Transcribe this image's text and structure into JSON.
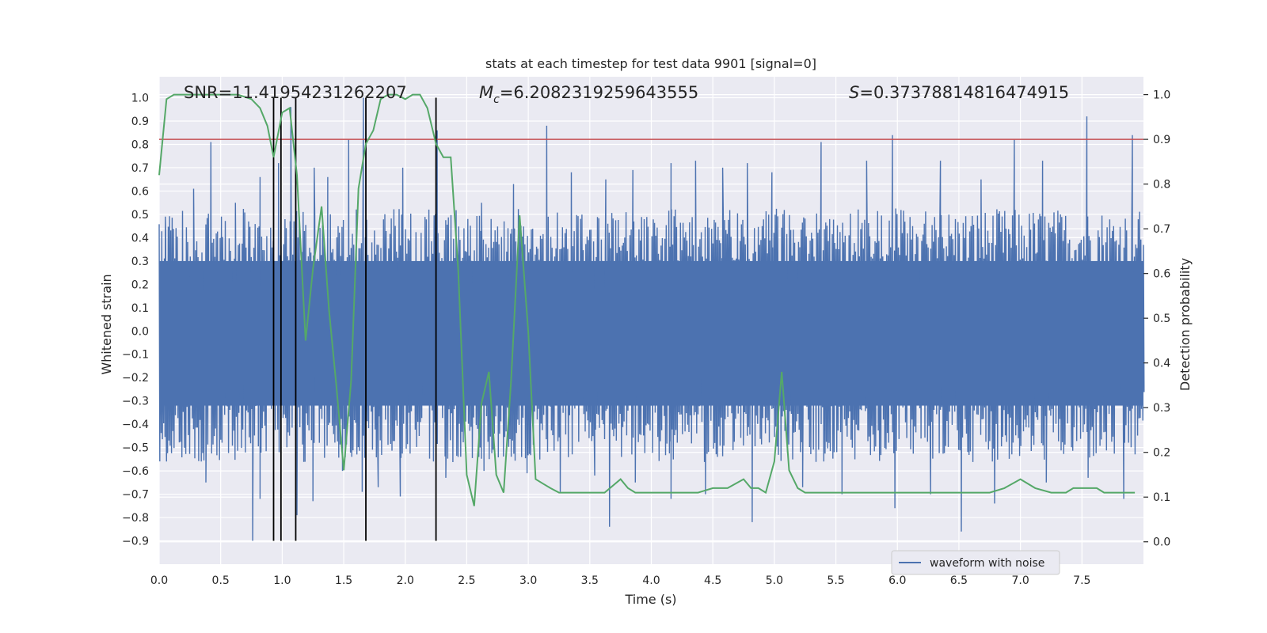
{
  "chart_data": {
    "type": "line",
    "title": "stats at each timestep for test data 9901 [signal=0]",
    "xlabel": "Time (s)",
    "ylabel_left": "Whitened strain",
    "ylabel_right": "Detection probability",
    "xlim": [
      0.0,
      8.0
    ],
    "ylim_left": [
      -1.0,
      1.09
    ],
    "ylim_right": [
      -0.05,
      1.04
    ],
    "xticks": [
      "0.0",
      "0.5",
      "1.0",
      "1.5",
      "2.0",
      "2.5",
      "3.0",
      "3.5",
      "4.0",
      "4.5",
      "5.0",
      "5.5",
      "6.0",
      "6.5",
      "7.0",
      "7.5"
    ],
    "yticks_left": [
      "-0.9",
      "-0.8",
      "-0.7",
      "-0.6",
      "-0.5",
      "-0.4",
      "-0.3",
      "-0.2",
      "-0.1",
      "0.0",
      "0.1",
      "0.2",
      "0.3",
      "0.4",
      "0.5",
      "0.6",
      "0.7",
      "0.8",
      "0.9",
      "1.0"
    ],
    "yticks_right": [
      "0.0",
      "0.1",
      "0.2",
      "0.3",
      "0.4",
      "0.5",
      "0.6",
      "0.7",
      "0.8",
      "0.9",
      "1.0"
    ],
    "annotations": {
      "snr": "SNR=11.41954231262207",
      "mc_symbol": "M",
      "mc_sub": "c",
      "mc_value": "=6.2082319259643555",
      "s_symbol": "S",
      "s_value": "=0.37378814816474915"
    },
    "legend": {
      "label": "waveform with noise",
      "position": "lower right"
    },
    "threshold_right": 0.9,
    "vertical_lines_x": [
      0.93,
      0.99,
      1.11,
      1.68,
      2.25
    ],
    "waveform": {
      "name": "waveform with noise",
      "color": "#4c72b0",
      "envelope": {
        "x_start": 0.0,
        "x_end": 8.0,
        "num_spikes": 760,
        "typical_high": 0.42,
        "typical_low": -0.45
      },
      "spikes_high": [
        [
          0.05,
          0.49
        ],
        [
          0.28,
          0.61
        ],
        [
          0.42,
          0.81
        ],
        [
          0.62,
          0.55
        ],
        [
          0.82,
          0.66
        ],
        [
          0.97,
          0.72
        ],
        [
          1.07,
          0.96
        ],
        [
          1.26,
          0.7
        ],
        [
          1.37,
          0.66
        ],
        [
          1.54,
          0.82
        ],
        [
          1.66,
          1.0
        ],
        [
          1.98,
          0.7
        ],
        [
          2.26,
          0.86
        ],
        [
          2.62,
          0.55
        ],
        [
          2.88,
          0.63
        ],
        [
          3.15,
          0.88
        ],
        [
          3.35,
          0.68
        ],
        [
          3.63,
          0.65
        ],
        [
          3.85,
          0.69
        ],
        [
          4.16,
          0.72
        ],
        [
          4.36,
          0.73
        ],
        [
          4.58,
          0.7
        ],
        [
          4.78,
          0.72
        ],
        [
          4.98,
          0.68
        ],
        [
          5.38,
          0.81
        ],
        [
          5.75,
          0.73
        ],
        [
          5.96,
          0.84
        ],
        [
          6.35,
          0.73
        ],
        [
          6.68,
          0.65
        ],
        [
          6.95,
          0.82
        ],
        [
          7.18,
          0.73
        ],
        [
          7.54,
          0.92
        ],
        [
          7.91,
          0.84
        ]
      ],
      "spikes_low": [
        [
          0.06,
          -0.56
        ],
        [
          0.38,
          -0.65
        ],
        [
          0.76,
          -0.9
        ],
        [
          0.82,
          -0.72
        ],
        [
          1.12,
          -0.79
        ],
        [
          1.25,
          -0.73
        ],
        [
          1.49,
          -0.6
        ],
        [
          1.65,
          -0.69
        ],
        [
          1.78,
          -0.67
        ],
        [
          1.96,
          -0.71
        ],
        [
          2.33,
          -0.63
        ],
        [
          2.64,
          -0.6
        ],
        [
          2.99,
          -0.61
        ],
        [
          3.26,
          -0.69
        ],
        [
          3.54,
          -0.62
        ],
        [
          3.66,
          -0.84
        ],
        [
          3.87,
          -0.65
        ],
        [
          4.16,
          -0.72
        ],
        [
          4.44,
          -0.7
        ],
        [
          4.82,
          -0.82
        ],
        [
          5.23,
          -0.67
        ],
        [
          5.55,
          -0.7
        ],
        [
          5.98,
          -0.76
        ],
        [
          6.27,
          -0.7
        ],
        [
          6.52,
          -0.86
        ],
        [
          6.79,
          -0.74
        ],
        [
          7.21,
          -0.65
        ],
        [
          7.55,
          -0.63
        ],
        [
          7.84,
          -0.72
        ]
      ]
    },
    "detection_probability": {
      "color": "#55a868",
      "x": [
        0.0,
        0.06,
        0.12,
        0.2,
        0.3,
        0.5,
        0.64,
        0.75,
        0.82,
        0.88,
        0.93,
        1.0,
        1.06,
        1.12,
        1.19,
        1.25,
        1.32,
        1.38,
        1.44,
        1.5,
        1.56,
        1.62,
        1.68,
        1.74,
        1.8,
        1.86,
        1.93,
        2.0,
        2.06,
        2.12,
        2.18,
        2.25,
        2.31,
        2.37,
        2.43,
        2.5,
        2.56,
        2.62,
        2.68,
        2.74,
        2.8,
        2.86,
        2.93,
        3.0,
        3.06,
        3.12,
        3.18,
        3.25,
        3.31,
        3.37,
        3.5,
        3.62,
        3.75,
        3.81,
        3.87,
        3.93,
        4.0,
        4.06,
        4.12,
        4.25,
        4.38,
        4.5,
        4.62,
        4.75,
        4.81,
        4.87,
        4.93,
        5.0,
        5.06,
        5.12,
        5.19,
        5.25,
        5.31,
        5.37,
        5.43,
        5.5,
        5.56,
        5.62,
        5.75,
        5.87,
        6.0,
        6.12,
        6.18,
        6.25,
        6.31,
        6.37,
        6.5,
        6.62,
        6.75,
        6.87,
        7.0,
        7.12,
        7.25,
        7.31,
        7.37,
        7.43,
        7.5,
        7.56,
        7.62,
        7.68,
        7.75,
        7.81,
        7.93
      ],
      "y": [
        0.82,
        0.99,
        1.0,
        1.0,
        1.0,
        1.0,
        1.0,
        0.99,
        0.97,
        0.93,
        0.86,
        0.96,
        0.97,
        0.82,
        0.45,
        0.61,
        0.75,
        0.52,
        0.35,
        0.16,
        0.36,
        0.79,
        0.89,
        0.92,
        0.99,
        1.0,
        1.0,
        0.99,
        1.0,
        1.0,
        0.97,
        0.89,
        0.86,
        0.86,
        0.61,
        0.15,
        0.08,
        0.31,
        0.38,
        0.15,
        0.11,
        0.36,
        0.73,
        0.47,
        0.14,
        0.13,
        0.12,
        0.11,
        0.11,
        0.11,
        0.11,
        0.11,
        0.14,
        0.12,
        0.11,
        0.11,
        0.11,
        0.11,
        0.11,
        0.11,
        0.11,
        0.12,
        0.12,
        0.14,
        0.12,
        0.12,
        0.11,
        0.18,
        0.38,
        0.16,
        0.12,
        0.11,
        0.11,
        0.11,
        0.11,
        0.11,
        0.11,
        0.11,
        0.11,
        0.11,
        0.11,
        0.11,
        0.11,
        0.11,
        0.11,
        0.11,
        0.11,
        0.11,
        0.11,
        0.12,
        0.14,
        0.12,
        0.11,
        0.11,
        0.11,
        0.12,
        0.12,
        0.12,
        0.12,
        0.11,
        0.11,
        0.11,
        0.11
      ]
    }
  }
}
